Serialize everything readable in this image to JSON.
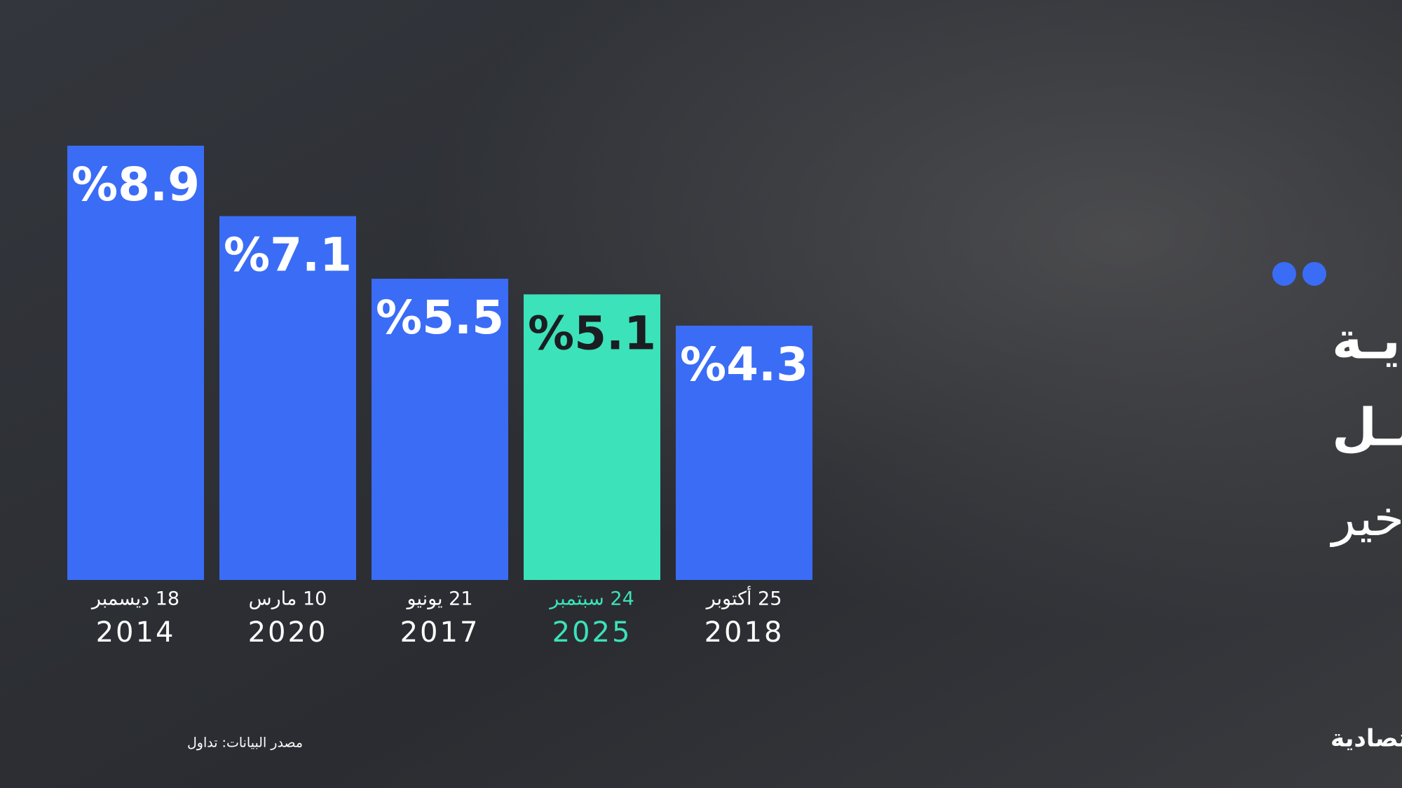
{
  "chart_data": {
    "type": "bar",
    "title": [
      "الأسـهـم السعوديـة",
      "تسـجـل رابـع أفضـل",
      "أداء في العقد الأخير"
    ],
    "categories": [
      "18 ديسمبر",
      "10 مارس",
      "21 يونيو",
      "24 سبتمبر",
      "25 أكتوبر"
    ],
    "years": [
      "2014",
      "2020",
      "2017",
      "2025",
      "2018"
    ],
    "values": [
      8.9,
      7.1,
      5.5,
      5.1,
      4.3
    ],
    "value_labels": [
      "%8.9",
      "%7.1",
      "%5.5",
      "%5.1",
      "%4.3"
    ],
    "colors": [
      "#3a6cf6",
      "#3a6cf6",
      "#3a6cf6",
      "#3ce2b9",
      "#3a6cf6"
    ],
    "ylim": [
      -2.2,
      8.9
    ],
    "source": "مصدر البيانات: تداول",
    "brand": "الاقتصادية"
  }
}
